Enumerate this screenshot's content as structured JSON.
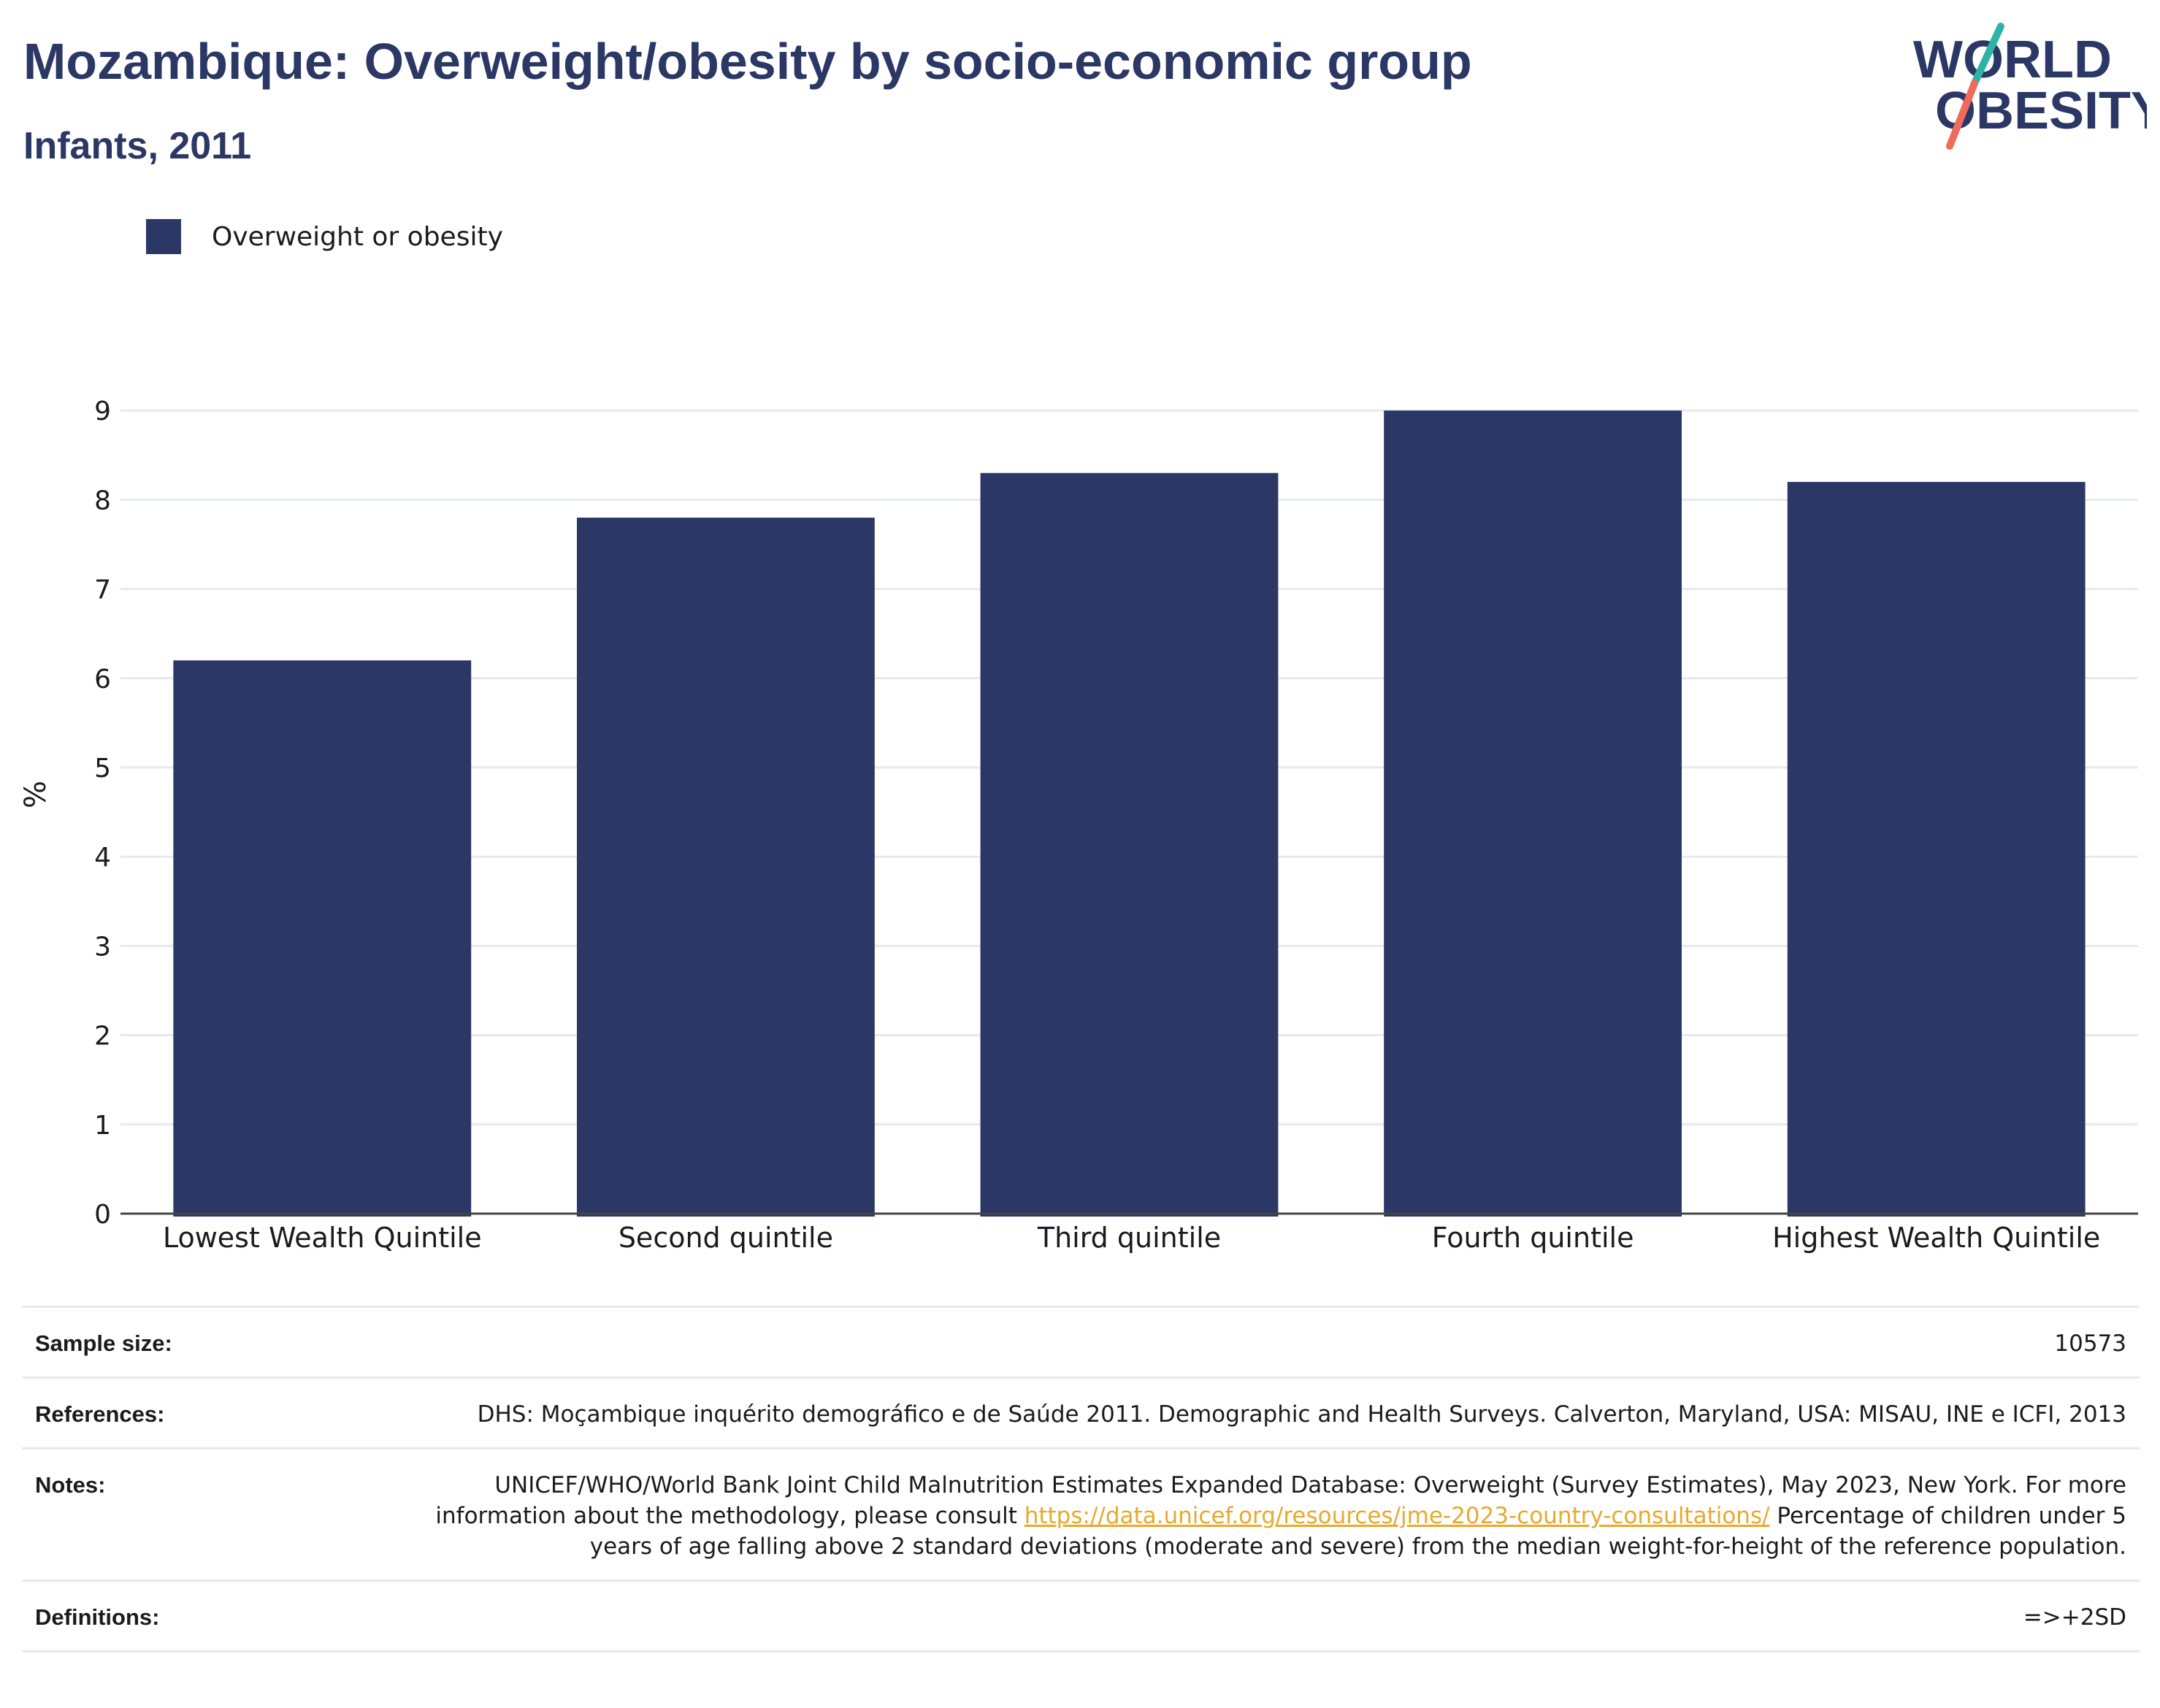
{
  "header": {
    "title": "Mozambique: Overweight/obesity by socio-economic group",
    "subtitle": "Infants, 2011"
  },
  "logo": {
    "line1": "WORLD",
    "line2": "OBESITY"
  },
  "colors": {
    "bar": "#2b3765",
    "title": "#2b3765",
    "grid": "#e6e9f2",
    "axis": "#444444",
    "link": "#e8a92d",
    "logo_teal": "#2fb3a7",
    "logo_coral": "#ef6b5b"
  },
  "chart_data": {
    "type": "bar",
    "categories": [
      "Lowest Wealth Quintile",
      "Second quintile",
      "Third quintile",
      "Fourth quintile",
      "Highest Wealth Quintile"
    ],
    "series": [
      {
        "name": "Overweight or obesity",
        "values": [
          6.2,
          7.8,
          8.3,
          9.0,
          8.2
        ]
      }
    ],
    "ylabel": "%",
    "ylim": [
      0,
      9.5
    ],
    "yticks": [
      0,
      1,
      2,
      3,
      4,
      5,
      6,
      7,
      8,
      9
    ],
    "grid": true,
    "legend": "top-left"
  },
  "info": {
    "sample_size_label": "Sample size:",
    "sample_size_value": "10573",
    "references_label": "References:",
    "references_value": "DHS: Moçambique inquérito demográfico e de Saúde 2011. Demographic and Health Surveys. Calverton, Maryland, USA: MISAU, INE e ICFI, 2013",
    "notes_label": "Notes:",
    "notes_text_1": "UNICEF/WHO/World Bank Joint Child Malnutrition Estimates Expanded Database: Overweight (Survey Estimates), May 2023, New York. For more information about the methodology, please consult",
    "notes_link": "https://data.unicef.org/resources/jme-2023-country-consultations/",
    "notes_text_2": "Percentage of children under 5 years of age falling above 2 standard deviations (moderate and severe) from the median weight-for-height of the reference population.",
    "definitions_label": "Definitions:",
    "definitions_value": "=>+2SD"
  }
}
